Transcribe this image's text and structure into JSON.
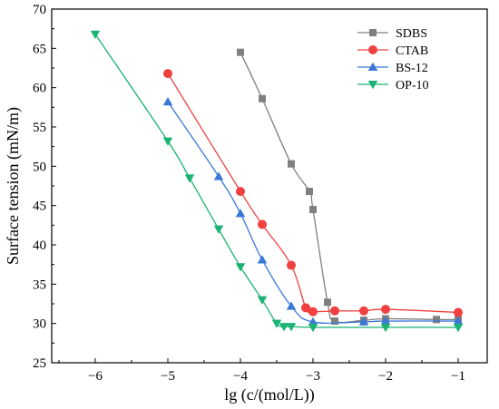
{
  "chart_data": {
    "type": "line",
    "title": "",
    "xlabel": "lg (c/(mol/L))",
    "ylabel": "Surface tension (mN/m)",
    "xlim": [
      -6.6,
      -0.6
    ],
    "ylim": [
      25,
      70
    ],
    "xticks": [
      -6,
      -5,
      -4,
      -3,
      -2,
      -1
    ],
    "yticks": [
      25,
      30,
      35,
      40,
      45,
      50,
      55,
      60,
      65,
      70
    ],
    "grid": false,
    "legend_position": "top-right",
    "series": [
      {
        "name": "SDBS",
        "color": "#808080",
        "marker": "square",
        "x": [
          -4.0,
          -3.7,
          -3.3,
          -3.05,
          -3.0,
          -2.8,
          -2.7,
          -2.3,
          -2.0,
          -1.3,
          -1.0
        ],
        "y": [
          64.5,
          58.6,
          50.3,
          46.8,
          44.5,
          32.7,
          30.3,
          30.4,
          30.6,
          30.5,
          30.5
        ]
      },
      {
        "name": "CTAB",
        "color": "#f04040",
        "marker": "circle",
        "x": [
          -5.0,
          -4.0,
          -3.7,
          -3.3,
          -3.1,
          -3.0,
          -2.7,
          -2.3,
          -2.0,
          -1.0
        ],
        "y": [
          61.8,
          46.8,
          42.6,
          37.4,
          32.0,
          31.5,
          31.6,
          31.6,
          31.8,
          31.4
        ]
      },
      {
        "name": "BS-12",
        "color": "#3a78d8",
        "marker": "triangle-up",
        "x": [
          -5.0,
          -4.3,
          -4.0,
          -3.7,
          -3.3,
          -3.0,
          -2.3,
          -2.0,
          -1.0
        ],
        "y": [
          58.2,
          48.7,
          44.0,
          38.1,
          32.2,
          30.2,
          30.2,
          30.3,
          30.3
        ]
      },
      {
        "name": "OP-10",
        "color": "#1bb274",
        "marker": "triangle-down",
        "x": [
          -6.0,
          -5.0,
          -4.7,
          -4.3,
          -4.0,
          -3.7,
          -3.5,
          -3.4,
          -3.3,
          -3.0,
          -2.0,
          -1.0
        ],
        "y": [
          66.8,
          53.2,
          48.5,
          42.0,
          37.2,
          33.0,
          30.0,
          29.6,
          29.6,
          29.5,
          29.5,
          29.5
        ]
      }
    ]
  }
}
